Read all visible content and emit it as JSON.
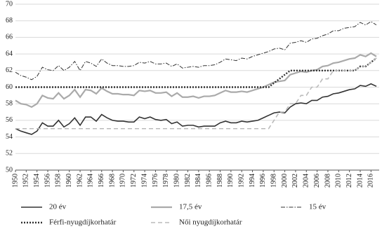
{
  "chart_data": {
    "type": "line",
    "x": [
      1950,
      1951,
      1952,
      1953,
      1954,
      1955,
      1956,
      1957,
      1958,
      1959,
      1960,
      1961,
      1962,
      1963,
      1964,
      1965,
      1966,
      1967,
      1968,
      1969,
      1970,
      1971,
      1972,
      1973,
      1974,
      1975,
      1976,
      1977,
      1978,
      1979,
      1980,
      1981,
      1982,
      1983,
      1984,
      1985,
      1986,
      1987,
      1988,
      1989,
      1990,
      1991,
      1992,
      1993,
      1994,
      1995,
      1996,
      1997,
      1998,
      1999,
      2000,
      2001,
      2002,
      2003,
      2004,
      2005,
      2006,
      2007,
      2008,
      2009,
      2010,
      2011,
      2012,
      2013,
      2014,
      2015,
      2016,
      2017
    ],
    "xlim": [
      1950,
      2017
    ],
    "xticks": [
      1950,
      1952,
      1954,
      1956,
      1958,
      1960,
      1962,
      1964,
      1966,
      1968,
      1970,
      1972,
      1974,
      1976,
      1978,
      1980,
      1982,
      1984,
      1986,
      1988,
      1990,
      1992,
      1994,
      1996,
      1998,
      2000,
      2002,
      2004,
      2006,
      2008,
      2010,
      2012,
      2014,
      2016
    ],
    "ylim": [
      50,
      70
    ],
    "yticks": [
      50,
      52,
      54,
      56,
      58,
      60,
      62,
      64,
      66,
      68,
      70
    ],
    "grid": true,
    "series": [
      {
        "name": "20 év",
        "color": "#333333",
        "dash": "solid",
        "values": [
          55.0,
          54.7,
          54.5,
          54.3,
          54.7,
          55.7,
          55.3,
          55.3,
          56.0,
          55.2,
          55.6,
          56.3,
          55.4,
          56.4,
          56.4,
          55.9,
          56.7,
          56.3,
          56.0,
          55.9,
          55.9,
          55.8,
          55.8,
          56.4,
          56.2,
          56.4,
          56.1,
          56.0,
          56.1,
          55.6,
          55.8,
          55.3,
          55.4,
          55.4,
          55.2,
          55.3,
          55.3,
          55.3,
          55.7,
          55.9,
          55.7,
          55.7,
          55.9,
          55.8,
          55.9,
          56.0,
          56.3,
          56.6,
          56.9,
          57.0,
          56.9,
          57.6,
          58.0,
          58.1,
          58.0,
          58.4,
          58.4,
          58.8,
          58.9,
          59.2,
          59.3,
          59.5,
          59.7,
          59.8,
          60.2,
          60.1,
          60.4,
          60.1
        ]
      },
      {
        "name": "17,5 év",
        "color": "#aaaaaa",
        "dash": "solid",
        "values": [
          58.4,
          58.0,
          57.9,
          57.6,
          58.0,
          59.0,
          58.7,
          58.6,
          59.3,
          58.6,
          59.0,
          59.7,
          58.8,
          59.7,
          59.6,
          59.2,
          59.9,
          59.5,
          59.2,
          59.2,
          59.1,
          59.1,
          59.0,
          59.6,
          59.5,
          59.6,
          59.3,
          59.3,
          59.4,
          58.9,
          59.3,
          58.8,
          58.8,
          58.9,
          58.7,
          58.9,
          58.9,
          59.0,
          59.3,
          59.6,
          59.4,
          59.4,
          59.5,
          59.4,
          59.6,
          59.8,
          60.0,
          60.3,
          60.6,
          60.7,
          60.8,
          61.5,
          61.7,
          61.9,
          61.8,
          62.0,
          62.1,
          62.5,
          62.6,
          62.9,
          63.0,
          63.2,
          63.4,
          63.5,
          63.9,
          63.7,
          64.1,
          63.7
        ]
      },
      {
        "name": "15 év",
        "color": "#333333",
        "dash": "dashdot",
        "values": [
          61.8,
          61.4,
          61.2,
          60.9,
          61.3,
          62.4,
          62.1,
          62.0,
          62.6,
          62.0,
          62.4,
          63.1,
          62.0,
          63.1,
          62.9,
          62.5,
          63.4,
          62.9,
          62.6,
          62.6,
          62.5,
          62.5,
          62.6,
          63.0,
          62.9,
          63.1,
          62.8,
          62.8,
          62.9,
          62.5,
          62.8,
          62.3,
          62.4,
          62.5,
          62.4,
          62.6,
          62.6,
          62.7,
          63.0,
          63.4,
          63.3,
          63.2,
          63.5,
          63.4,
          63.7,
          63.9,
          64.1,
          64.3,
          64.6,
          64.7,
          64.5,
          65.3,
          65.4,
          65.6,
          65.4,
          65.8,
          65.9,
          66.2,
          66.4,
          66.8,
          66.8,
          67.1,
          67.2,
          67.3,
          67.8,
          67.5,
          67.9,
          67.5
        ]
      },
      {
        "name": "Férfi-nyugdíjkorhatár",
        "color": "#333333",
        "dash": "dotted",
        "values": [
          60,
          60,
          60,
          60,
          60,
          60,
          60,
          60,
          60,
          60,
          60,
          60,
          60,
          60,
          60,
          60,
          60,
          60,
          60,
          60,
          60,
          60,
          60,
          60,
          60,
          60,
          60,
          60,
          60,
          60,
          60,
          60,
          60,
          60,
          60,
          60,
          60,
          60,
          60,
          60,
          60,
          60,
          60,
          60,
          60,
          60,
          60,
          60,
          60.5,
          61,
          61.5,
          62,
          62,
          62,
          62,
          62,
          62,
          62,
          62,
          62,
          62,
          62,
          62,
          62,
          62.5,
          62.5,
          63,
          63.5
        ]
      },
      {
        "name": "Női nyugdíjkorhatár",
        "color": "#bbbbbb",
        "dash": "dashed",
        "values": [
          55,
          55,
          55,
          55,
          55,
          55,
          55,
          55,
          55,
          55,
          55,
          55,
          55,
          55,
          55,
          55,
          55,
          55,
          55,
          55,
          55,
          55,
          55,
          55,
          55,
          55,
          55,
          55,
          55,
          55,
          55,
          55,
          55,
          55,
          55,
          55,
          55,
          55,
          55,
          55,
          55,
          55,
          55,
          55,
          55,
          55,
          55,
          55,
          56,
          57,
          57,
          58,
          58,
          59,
          59,
          60,
          60,
          61,
          61,
          62,
          62,
          62,
          62,
          62,
          62.5,
          62.5,
          63,
          63.5
        ]
      }
    ]
  }
}
